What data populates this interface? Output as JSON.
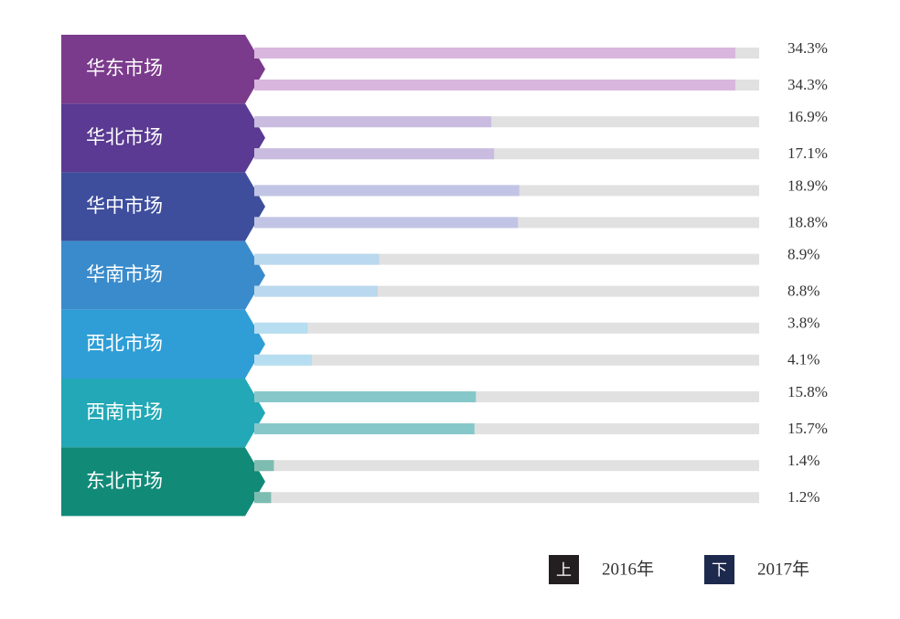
{
  "chart_data": {
    "type": "bar",
    "orientation": "horizontal",
    "categories": [
      "华东市场",
      "华北市场",
      "华中市场",
      "华南市场",
      "西北市场",
      "西南市场",
      "东北市场"
    ],
    "category_colors": [
      "#7b3b8c",
      "#5a3a92",
      "#3e4e9d",
      "#3a8bcc",
      "#2f9dd6",
      "#22a8b6",
      "#118a78"
    ],
    "xlim": [
      0,
      36
    ],
    "track_color": "#e1e1e1",
    "series": [
      {
        "name": "2016年",
        "marker": "上",
        "marker_color": "#231f20",
        "values": [
          34.3,
          16.9,
          18.9,
          8.9,
          3.8,
          15.8,
          1.4
        ],
        "value_labels": [
          "34.3%",
          "16.9%",
          "18.9%",
          "8.9%",
          "3.8%",
          "15.8%",
          "1.4%"
        ],
        "colors": [
          "#d9b6dd",
          "#c9bce0",
          "#c1c4e5",
          "#bad8ee",
          "#b6ddf0",
          "#86c8ca",
          "#7dbdb1"
        ]
      },
      {
        "name": "2017年",
        "marker": "下",
        "marker_color": "#1d2a4d",
        "values": [
          34.3,
          17.1,
          18.8,
          8.8,
          4.1,
          15.7,
          1.2
        ],
        "value_labels": [
          "34.3%",
          "17.1%",
          "18.8%",
          "8.8%",
          "4.1%",
          "15.7%",
          "1.2%"
        ],
        "colors": [
          "#d9b6dd",
          "#c9bce0",
          "#c1c4e5",
          "#bad8ee",
          "#b6ddf0",
          "#86c8ca",
          "#7dbdb1"
        ]
      }
    ]
  }
}
